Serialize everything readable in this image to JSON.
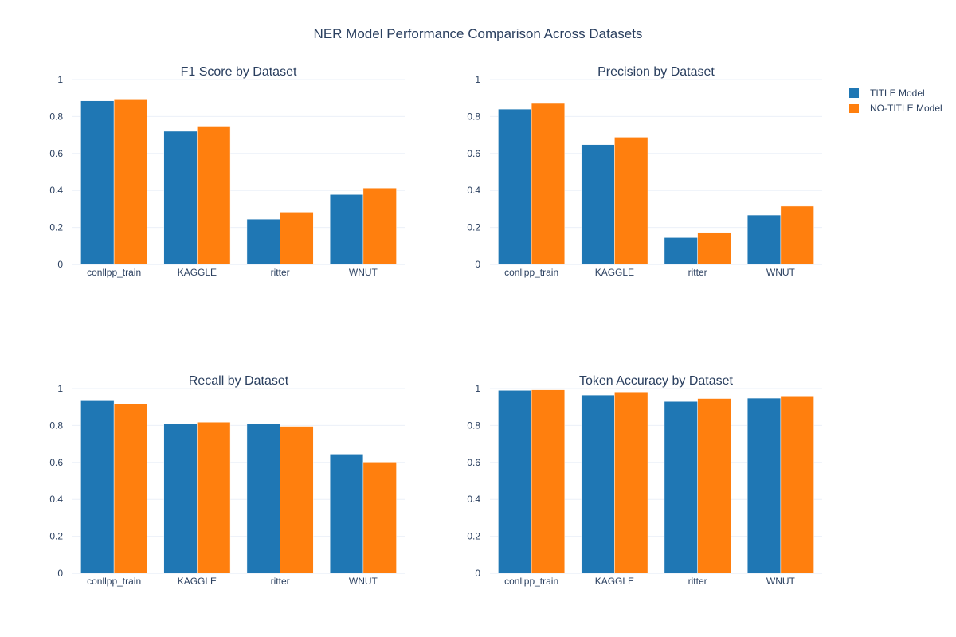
{
  "figure": {
    "title": "NER Model Performance Comparison Across Datasets"
  },
  "legend": {
    "items": [
      {
        "label": "TITLE Model",
        "color": "#1f77b4"
      },
      {
        "label": "NO-TITLE Model",
        "color": "#ff7f0e"
      }
    ]
  },
  "chart_data": [
    {
      "type": "bar",
      "title": "F1 Score by Dataset",
      "categories": [
        "conllpp_train",
        "KAGGLE",
        "ritter",
        "WNUT"
      ],
      "ylim": [
        0,
        1
      ],
      "yticks": [
        "0",
        "0.2",
        "0.4",
        "0.6",
        "0.8",
        "1"
      ],
      "series": [
        {
          "name": "TITLE Model",
          "color": "#1f77b4",
          "values": [
            0.885,
            0.72,
            0.245,
            0.378
          ]
        },
        {
          "name": "NO-TITLE Model",
          "color": "#ff7f0e",
          "values": [
            0.895,
            0.748,
            0.283,
            0.413
          ]
        }
      ]
    },
    {
      "type": "bar",
      "title": "Precision by Dataset",
      "categories": [
        "conllpp_train",
        "KAGGLE",
        "ritter",
        "WNUT"
      ],
      "ylim": [
        0,
        1
      ],
      "yticks": [
        "0",
        "0.2",
        "0.4",
        "0.6",
        "0.8",
        "1"
      ],
      "series": [
        {
          "name": "TITLE Model",
          "color": "#1f77b4",
          "values": [
            0.84,
            0.648,
            0.145,
            0.267
          ]
        },
        {
          "name": "NO-TITLE Model",
          "color": "#ff7f0e",
          "values": [
            0.875,
            0.688,
            0.173,
            0.315
          ]
        }
      ]
    },
    {
      "type": "bar",
      "title": "Recall by Dataset",
      "categories": [
        "conllpp_train",
        "KAGGLE",
        "ritter",
        "WNUT"
      ],
      "ylim": [
        0,
        1
      ],
      "yticks": [
        "0",
        "0.2",
        "0.4",
        "0.6",
        "0.8",
        "1"
      ],
      "series": [
        {
          "name": "TITLE Model",
          "color": "#1f77b4",
          "values": [
            0.938,
            0.81,
            0.81,
            0.645
          ]
        },
        {
          "name": "NO-TITLE Model",
          "color": "#ff7f0e",
          "values": [
            0.915,
            0.818,
            0.795,
            0.602
          ]
        }
      ]
    },
    {
      "type": "bar",
      "title": "Token Accuracy by Dataset",
      "categories": [
        "conllpp_train",
        "KAGGLE",
        "ritter",
        "WNUT"
      ],
      "ylim": [
        0,
        1
      ],
      "yticks": [
        "0",
        "0.2",
        "0.4",
        "0.6",
        "0.8",
        "1"
      ],
      "series": [
        {
          "name": "TITLE Model",
          "color": "#1f77b4",
          "values": [
            0.99,
            0.965,
            0.93,
            0.948
          ]
        },
        {
          "name": "NO-TITLE Model",
          "color": "#ff7f0e",
          "values": [
            0.993,
            0.982,
            0.946,
            0.96
          ]
        }
      ]
    }
  ]
}
